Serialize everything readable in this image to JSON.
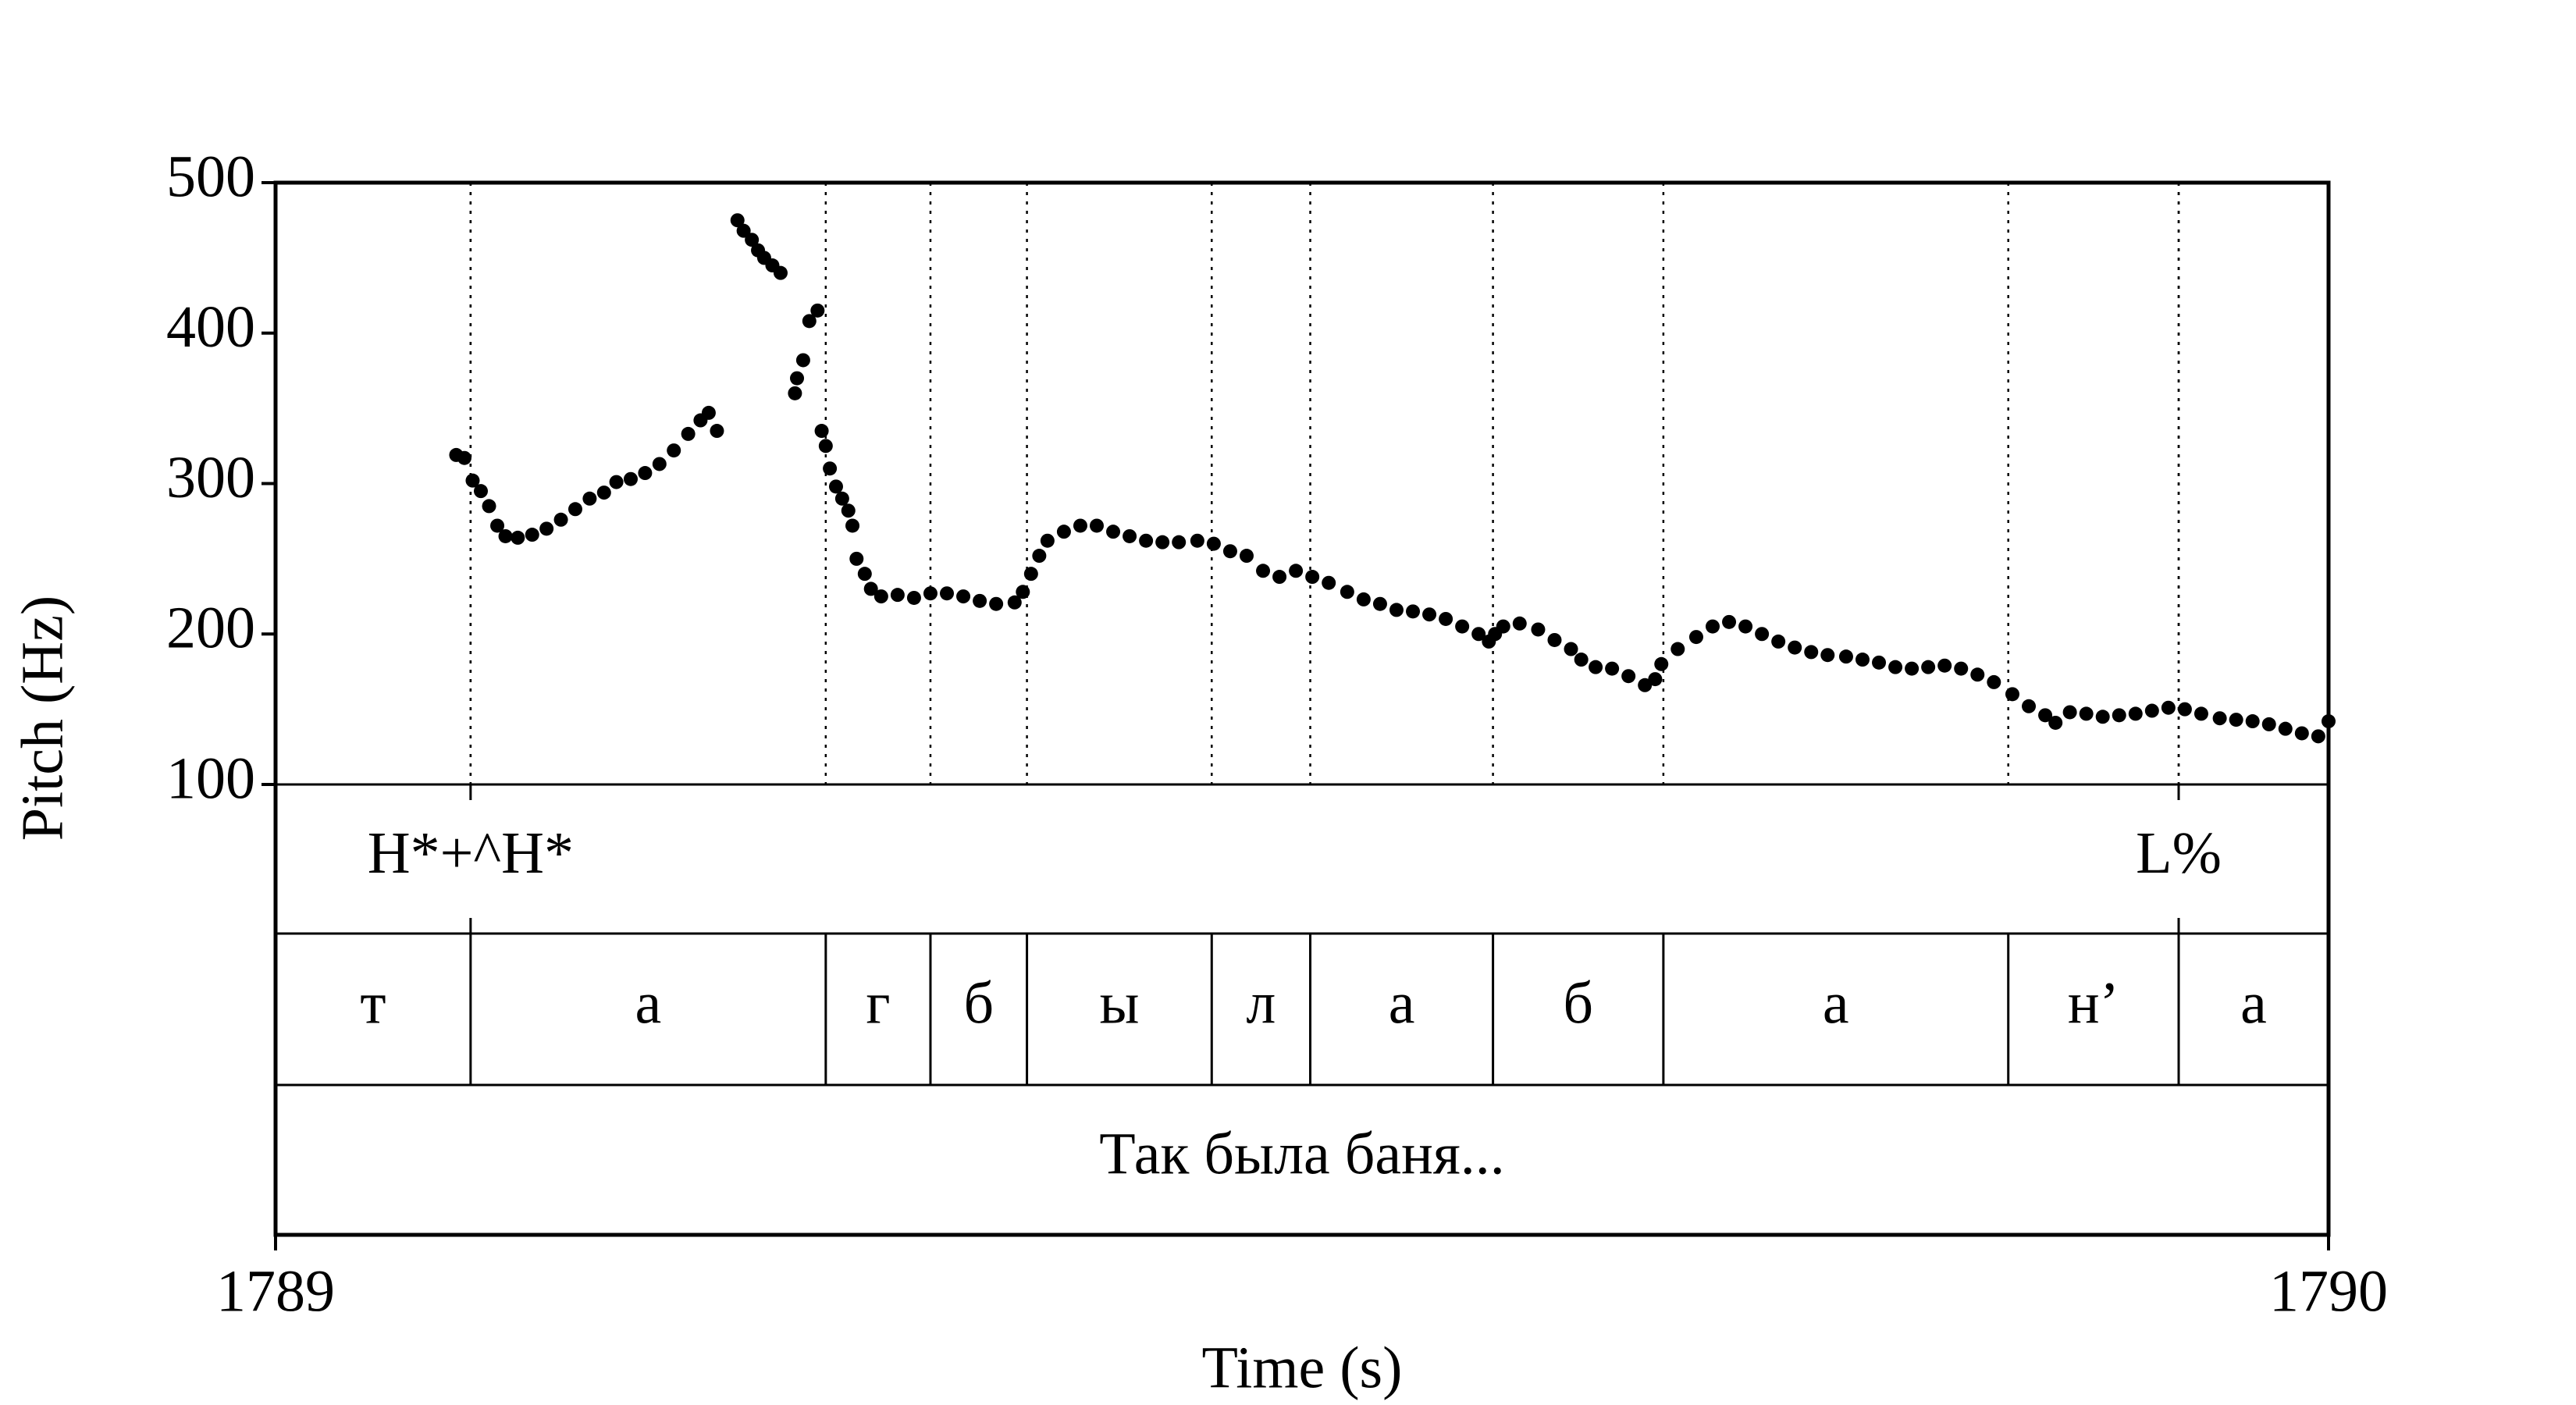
{
  "chart_data": {
    "type": "scatter",
    "x_label": "Time (s)",
    "y_label": "Pitch (Hz)",
    "xlim": [
      1789,
      1790
    ],
    "xticks": [
      1789,
      1790
    ],
    "ylim": [
      100,
      500
    ],
    "yticks": [
      100,
      200,
      300,
      400,
      500
    ],
    "color": "#000000",
    "x": [
      1789.088,
      1789.092,
      1789.096,
      1789.1,
      1789.104,
      1789.108,
      1789.112,
      1789.118,
      1789.125,
      1789.132,
      1789.139,
      1789.146,
      1789.153,
      1789.16,
      1789.166,
      1789.173,
      1789.18,
      1789.187,
      1789.194,
      1789.201,
      1789.207,
      1789.211,
      1789.215,
      1789.225,
      1789.228,
      1789.232,
      1789.235,
      1789.238,
      1789.242,
      1789.246,
      1789.253,
      1789.254,
      1789.257,
      1789.26,
      1789.264,
      1789.266,
      1789.268,
      1789.27,
      1789.273,
      1789.276,
      1789.279,
      1789.281,
      1789.283,
      1789.287,
      1789.29,
      1789.295,
      1789.303,
      1789.311,
      1789.319,
      1789.327,
      1789.335,
      1789.343,
      1789.351,
      1789.36,
      1789.364,
      1789.368,
      1789.372,
      1789.376,
      1789.384,
      1789.392,
      1789.4,
      1789.408,
      1789.416,
      1789.424,
      1789.432,
      1789.44,
      1789.449,
      1789.457,
      1789.465,
      1789.473,
      1789.481,
      1789.489,
      1789.497,
      1789.505,
      1789.513,
      1789.522,
      1789.53,
      1789.538,
      1789.546,
      1789.554,
      1789.562,
      1789.57,
      1789.578,
      1789.586,
      1789.591,
      1789.594,
      1789.598,
      1789.606,
      1789.615,
      1789.623,
      1789.631,
      1789.636,
      1789.643,
      1789.651,
      1789.659,
      1789.667,
      1789.672,
      1789.675,
      1789.683,
      1789.692,
      1789.7,
      1789.708,
      1789.716,
      1789.724,
      1789.732,
      1789.74,
      1789.748,
      1789.756,
      1789.765,
      1789.773,
      1789.781,
      1789.789,
      1789.797,
      1789.805,
      1789.813,
      1789.821,
      1789.829,
      1789.837,
      1789.846,
      1789.854,
      1789.862,
      1789.867,
      1789.874,
      1789.882,
      1789.89,
      1789.898,
      1789.906,
      1789.914,
      1789.922,
      1789.93,
      1789.938,
      1789.947,
      1789.955,
      1789.963,
      1789.971,
      1789.979,
      1789.987,
      1789.995,
      1790.0
    ],
    "values": [
      319,
      317,
      302,
      295,
      285,
      272,
      265,
      264,
      266,
      270,
      276,
      283,
      290,
      294,
      301,
      303,
      307,
      313,
      322,
      333,
      342,
      347,
      335,
      475,
      468,
      462,
      455,
      450,
      445,
      440,
      360,
      370,
      382,
      408,
      415,
      335,
      325,
      310,
      298,
      290,
      282,
      272,
      250,
      240,
      230,
      225,
      226,
      224,
      227,
      227,
      225,
      222,
      220,
      221,
      228,
      240,
      252,
      262,
      268,
      272,
      272,
      268,
      265,
      262,
      261,
      261,
      262,
      260,
      255,
      252,
      242,
      238,
      242,
      238,
      234,
      228,
      223,
      220,
      216,
      215,
      213,
      210,
      205,
      200,
      195,
      200,
      205,
      207,
      203,
      196,
      190,
      183,
      178,
      177,
      172,
      166,
      170,
      180,
      190,
      198,
      205,
      208,
      205,
      200,
      195,
      191,
      188,
      186,
      185,
      183,
      181,
      178,
      177,
      178,
      179,
      177,
      173,
      168,
      160,
      152,
      146,
      141,
      148,
      147,
      145,
      146,
      147,
      149,
      151,
      150,
      147,
      144,
      143,
      142,
      140,
      137,
      134,
      132,
      142
    ],
    "tiers": [
      {
        "labels": [
          "H*+^H*",
          "L%"
        ],
        "points": [
          1789.095,
          1789.927
        ]
      },
      {
        "labels": [
          "т",
          "а",
          "г",
          "б",
          "ы",
          "л",
          "а",
          "б",
          "а",
          "н’",
          "а"
        ],
        "boundaries": [
          1789.095,
          1789.268,
          1789.319,
          1789.366,
          1789.456,
          1789.504,
          1789.593,
          1789.676,
          1789.844,
          1789.927
        ]
      },
      {
        "labels": [
          "Так была баня..."
        ]
      }
    ]
  }
}
